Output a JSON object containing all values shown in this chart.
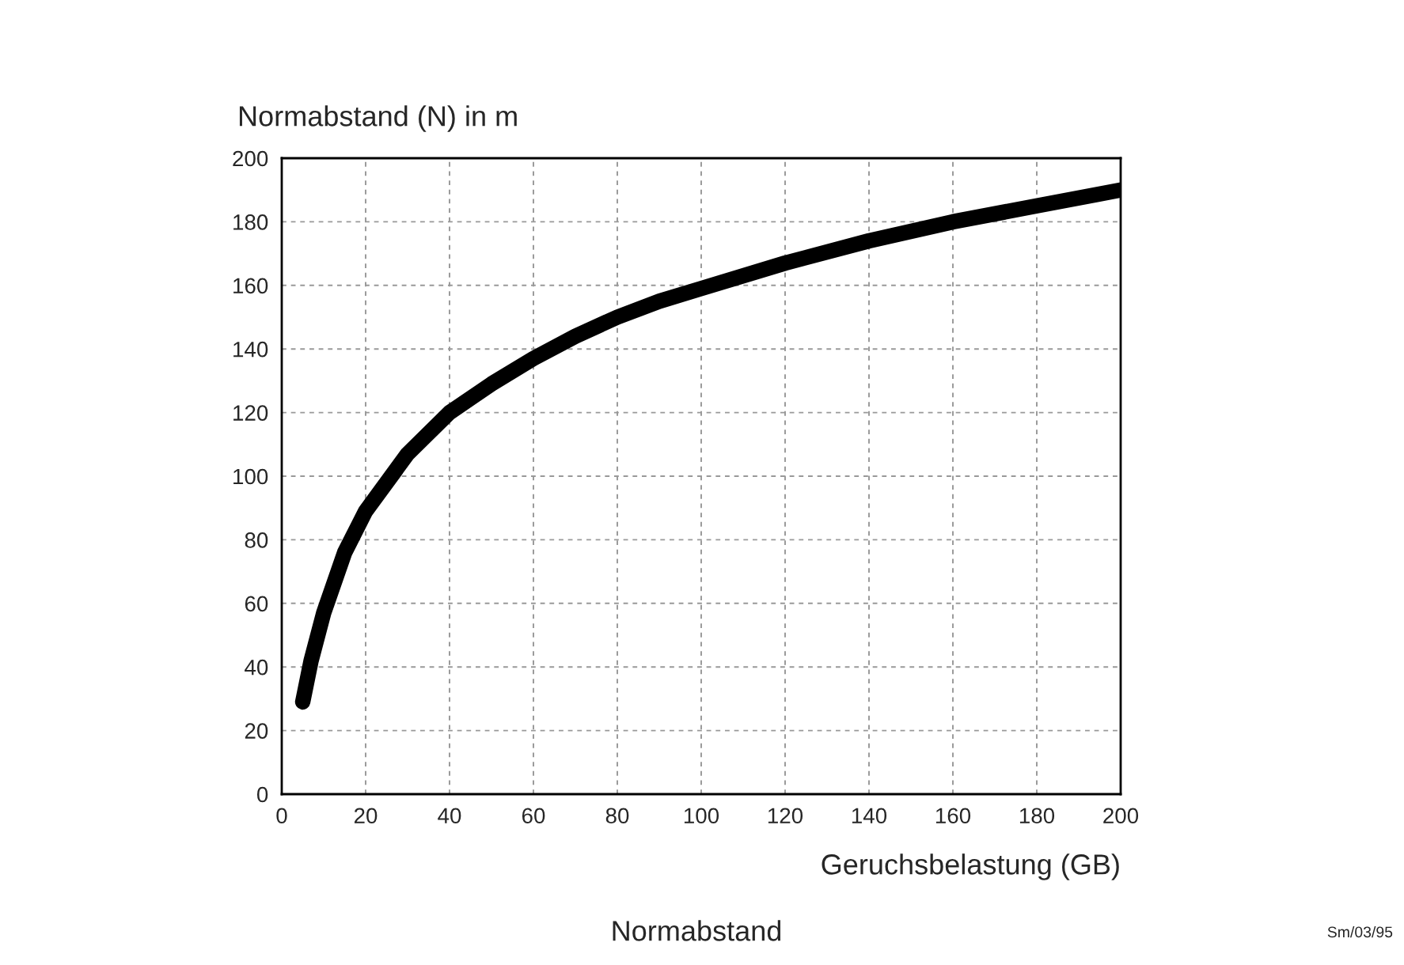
{
  "chart_data": {
    "type": "line",
    "title": "Normabstand",
    "xlabel": "Geruchsbelastung (GB)",
    "ylabel": "Normabstand (N) in m",
    "annotations": [
      "Sm/03/95"
    ],
    "x": [
      5,
      7,
      10,
      15,
      20,
      30,
      40,
      50,
      60,
      70,
      80,
      90,
      100,
      120,
      140,
      160,
      180,
      200
    ],
    "series": [
      {
        "color": "#000000",
        "values": [
          29,
          42,
          57,
          76,
          89,
          107,
          120,
          129,
          137,
          144,
          150,
          155,
          159,
          167,
          174,
          180,
          185,
          190
        ]
      }
    ],
    "xlim": [
      0,
      200
    ],
    "ylim": [
      0,
      200
    ],
    "xticks": [
      0,
      20,
      40,
      60,
      80,
      100,
      120,
      140,
      160,
      180,
      200
    ],
    "yticks": [
      0,
      20,
      40,
      60,
      80,
      100,
      120,
      140,
      160,
      180,
      200
    ],
    "grid": true,
    "legend": false,
    "marker": "none",
    "line_style": "solid"
  }
}
